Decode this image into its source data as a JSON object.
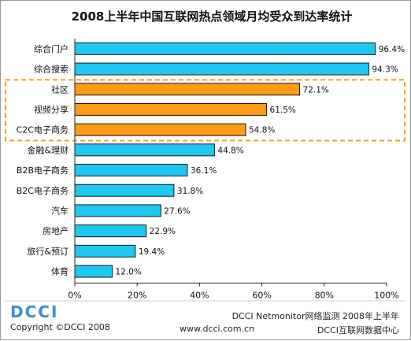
{
  "chart_data": {
    "type": "bar",
    "orientation": "horizontal",
    "title": "2008上半年中国互联网热点领域月均受众到达率统计",
    "categories": [
      "综合门户",
      "综合搜索",
      "社区",
      "视频分享",
      "C2C电子商务",
      "金融&理财",
      "B2B电子商务",
      "B2C电子商务",
      "汽车",
      "房地产",
      "旅行&预订",
      "体育"
    ],
    "values": [
      96.4,
      94.3,
      72.1,
      61.5,
      54.8,
      44.8,
      36.1,
      31.8,
      27.6,
      22.9,
      19.4,
      12.0
    ],
    "value_labels": [
      "96.4%",
      "94.3%",
      "72.1%",
      "61.5%",
      "54.8%",
      "44.8%",
      "36.1%",
      "31.8%",
      "27.6%",
      "22.9%",
      "19.4%",
      "12.0%"
    ],
    "highlighted_categories": [
      "社区",
      "视频分享",
      "C2C电子商务"
    ],
    "xlim": [
      0,
      100
    ],
    "x_ticks": [
      "0%",
      "20%",
      "40%",
      "60%",
      "80%",
      "100%"
    ],
    "grid": false,
    "colors": {
      "bar": "#1ec8f0",
      "highlight_bar": "#ff9a14",
      "highlight_box": "#f7a21b",
      "bar_edge": "#1a1a1a"
    }
  },
  "footer": {
    "logo_text": "DCCI",
    "copyright": "Copyright ©DCCI 2008",
    "website": "www.dcci.com.cn",
    "source_line": "DCCI Netmonitor网络监测  2008年上半年",
    "source_org": "DCCI互联网数据中心"
  }
}
